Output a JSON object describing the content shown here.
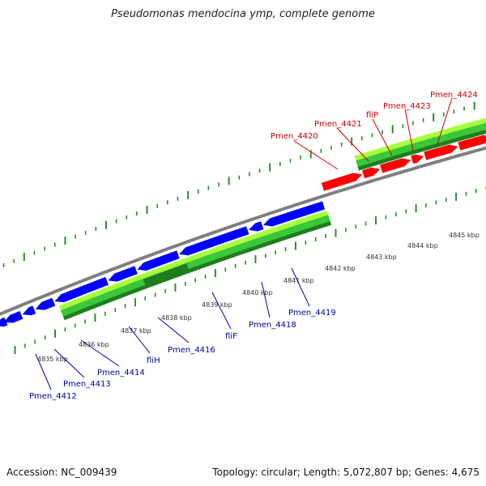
{
  "title": "Pseudomonas mendocina ymp, complete genome",
  "accession_text": "Accession: NC_009439",
  "summary_text": "Topology: circular; Length: 5,072,807 bp; Genes: 4,675",
  "colors": {
    "plus_strand_gene": "#ff0000",
    "minus_strand_gene": "#0000ff",
    "backbone": "#7f7f7f",
    "tick": "#2e8b2e",
    "feature_light": "#a8ff3c",
    "feature_mid": "#38c838",
    "feature_dark": "#1e7e1e",
    "label_plus": "#cc0000",
    "label_minus": "#0000aa"
  },
  "ticks": [
    "4835 kbp",
    "4836 kbp",
    "4837 kbp",
    "4838 kbp",
    "4839 kbp",
    "4840 kbp",
    "4841 kbp",
    "4842 kbp",
    "4843 kbp",
    "4844 kbp",
    "4845 kbp"
  ],
  "genes_plus": [
    "Pmen_4420",
    "Pmen_4421",
    "fliP",
    "Pmen_4423",
    "Pmen_4424"
  ],
  "genes_minus": [
    "Pmen_4412",
    "Pmen_4413",
    "Pmen_4414",
    "fliH",
    "Pmen_4416",
    "fliF",
    "Pmen_4418",
    "Pmen_4419"
  ]
}
